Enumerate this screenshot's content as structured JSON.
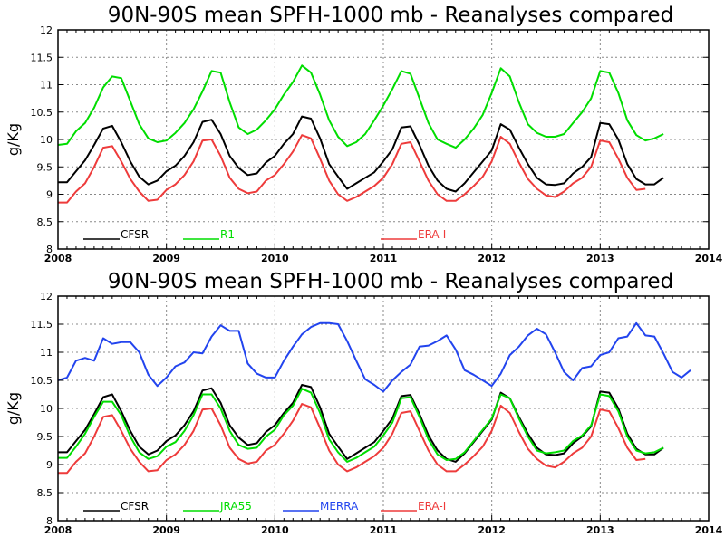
{
  "chart_data": [
    {
      "type": "line",
      "title": "90N-90S mean SPFH-1000 mb - Reanalyses compared",
      "ylabel": "g/Kg",
      "xlabel": "",
      "xlim": [
        2008,
        2014
      ],
      "ylim": [
        8,
        12
      ],
      "grid": true,
      "x_tick_labels": [
        "2008",
        "2009",
        "2010",
        "2011",
        "2012",
        "2013",
        "2014"
      ],
      "y_tick_labels": [
        "8",
        "8.5",
        "9",
        "9.5",
        "10",
        "10.5",
        "11",
        "11.5",
        "12"
      ],
      "legend_position": "bottom-left",
      "series": [
        {
          "name": "CFSR",
          "color": "#000000",
          "x_start": 2008.0,
          "x_step": 0.08333,
          "values": [
            9.22,
            9.22,
            9.42,
            9.62,
            9.9,
            10.2,
            10.25,
            9.95,
            9.6,
            9.32,
            9.18,
            9.25,
            9.42,
            9.52,
            9.7,
            9.95,
            10.32,
            10.36,
            10.1,
            9.7,
            9.48,
            9.35,
            9.38,
            9.58,
            9.7,
            9.92,
            10.1,
            10.42,
            10.38,
            10.02,
            9.55,
            9.32,
            9.1,
            9.2,
            9.3,
            9.4,
            9.6,
            9.82,
            10.22,
            10.24,
            9.9,
            9.52,
            9.25,
            9.1,
            9.05,
            9.2,
            9.4,
            9.6,
            9.8,
            10.28,
            10.18,
            9.85,
            9.55,
            9.3,
            9.18,
            9.17,
            9.2,
            9.38,
            9.5,
            9.68,
            10.3,
            10.28,
            10.0,
            9.55,
            9.28,
            9.18,
            9.18,
            9.3
          ]
        },
        {
          "name": "R1",
          "color": "#00dd00",
          "x_start": 2008.0,
          "x_step": 0.08333,
          "values": [
            9.9,
            9.92,
            10.15,
            10.3,
            10.58,
            10.95,
            11.15,
            11.12,
            10.7,
            10.28,
            10.02,
            9.95,
            9.98,
            10.12,
            10.3,
            10.55,
            10.88,
            11.25,
            11.22,
            10.68,
            10.22,
            10.1,
            10.18,
            10.35,
            10.55,
            10.82,
            11.05,
            11.35,
            11.22,
            10.82,
            10.35,
            10.05,
            9.88,
            9.95,
            10.1,
            10.35,
            10.62,
            10.92,
            11.25,
            11.2,
            10.75,
            10.3,
            10.0,
            9.92,
            9.85,
            10.0,
            10.2,
            10.45,
            10.85,
            11.3,
            11.15,
            10.68,
            10.28,
            10.12,
            10.05,
            10.05,
            10.1,
            10.3,
            10.5,
            10.75,
            11.25,
            11.22,
            10.85,
            10.35,
            10.08,
            9.98,
            10.02,
            10.1
          ]
        },
        {
          "name": "ERA-I",
          "color": "#ee3b3b",
          "x_start": 2008.0,
          "x_step": 0.08333,
          "values": [
            8.85,
            8.85,
            9.05,
            9.2,
            9.5,
            9.85,
            9.88,
            9.6,
            9.28,
            9.05,
            8.88,
            8.9,
            9.08,
            9.18,
            9.35,
            9.6,
            9.98,
            10.0,
            9.7,
            9.3,
            9.1,
            9.02,
            9.05,
            9.25,
            9.35,
            9.55,
            9.78,
            10.08,
            10.02,
            9.65,
            9.25,
            9.0,
            8.88,
            8.95,
            9.05,
            9.15,
            9.3,
            9.55,
            9.92,
            9.95,
            9.6,
            9.25,
            9.0,
            8.88,
            8.88,
            9.0,
            9.15,
            9.32,
            9.6,
            10.05,
            9.92,
            9.58,
            9.28,
            9.1,
            8.98,
            8.95,
            9.05,
            9.2,
            9.3,
            9.5,
            9.98,
            9.95,
            9.65,
            9.3,
            9.08,
            9.1
          ]
        }
      ]
    },
    {
      "type": "line",
      "title": "90N-90S mean SPFH-1000 mb - Reanalyses compared",
      "ylabel": "g/Kg",
      "xlabel": "",
      "xlim": [
        2008,
        2014
      ],
      "ylim": [
        8,
        12
      ],
      "grid": true,
      "x_tick_labels": [
        "2008",
        "2009",
        "2010",
        "2011",
        "2012",
        "2013",
        "2014"
      ],
      "y_tick_labels": [
        "8",
        "8.5",
        "9",
        "9.5",
        "10",
        "10.5",
        "11",
        "11.5",
        "12"
      ],
      "legend_position": "bottom-left",
      "series": [
        {
          "name": "CFSR",
          "color": "#000000",
          "x_start": 2008.0,
          "x_step": 0.08333,
          "values": [
            9.22,
            9.22,
            9.42,
            9.62,
            9.9,
            10.2,
            10.25,
            9.95,
            9.6,
            9.32,
            9.18,
            9.25,
            9.42,
            9.52,
            9.7,
            9.95,
            10.32,
            10.36,
            10.1,
            9.7,
            9.48,
            9.35,
            9.38,
            9.58,
            9.7,
            9.92,
            10.1,
            10.42,
            10.38,
            10.02,
            9.55,
            9.32,
            9.1,
            9.2,
            9.3,
            9.4,
            9.6,
            9.82,
            10.22,
            10.24,
            9.9,
            9.52,
            9.25,
            9.1,
            9.05,
            9.2,
            9.4,
            9.6,
            9.8,
            10.28,
            10.18,
            9.85,
            9.55,
            9.3,
            9.18,
            9.17,
            9.2,
            9.38,
            9.5,
            9.68,
            10.3,
            10.28,
            10.0,
            9.55,
            9.28,
            9.18,
            9.18,
            9.3
          ]
        },
        {
          "name": "JRA55",
          "color": "#00dd00",
          "x_start": 2008.0,
          "x_step": 0.08333,
          "values": [
            9.12,
            9.12,
            9.32,
            9.55,
            9.85,
            10.12,
            10.12,
            9.88,
            9.5,
            9.22,
            9.1,
            9.15,
            9.32,
            9.4,
            9.6,
            9.88,
            10.25,
            10.25,
            10.0,
            9.6,
            9.35,
            9.28,
            9.3,
            9.5,
            9.62,
            9.88,
            10.05,
            10.35,
            10.28,
            9.92,
            9.45,
            9.22,
            9.05,
            9.12,
            9.22,
            9.32,
            9.52,
            9.75,
            10.18,
            10.2,
            9.85,
            9.45,
            9.18,
            9.08,
            9.1,
            9.22,
            9.42,
            9.62,
            9.82,
            10.25,
            10.18,
            9.82,
            9.5,
            9.25,
            9.2,
            9.22,
            9.25,
            9.42,
            9.52,
            9.7,
            10.25,
            10.22,
            9.95,
            9.5,
            9.25,
            9.2,
            9.22,
            9.3
          ]
        },
        {
          "name": "MERRA",
          "color": "#2244ee",
          "x_start": 2008.0,
          "x_step": 0.08333,
          "values": [
            10.5,
            10.55,
            10.85,
            10.9,
            10.85,
            11.25,
            11.15,
            11.18,
            11.18,
            11.0,
            10.6,
            10.4,
            10.55,
            10.75,
            10.82,
            11.0,
            10.98,
            11.28,
            11.48,
            11.38,
            11.38,
            10.8,
            10.62,
            10.55,
            10.55,
            10.85,
            11.1,
            11.32,
            11.45,
            11.52,
            11.52,
            11.5,
            11.2,
            10.85,
            10.52,
            10.42,
            10.3,
            10.5,
            10.65,
            10.78,
            11.1,
            11.12,
            11.2,
            11.3,
            11.05,
            10.68,
            10.6,
            10.5,
            10.4,
            10.62,
            10.95,
            11.1,
            11.3,
            11.42,
            11.32,
            11.0,
            10.65,
            10.5,
            10.72,
            10.75,
            10.95,
            11.0,
            11.25,
            11.28,
            11.52,
            11.3,
            11.28,
            10.98,
            10.65,
            10.55,
            10.68
          ]
        },
        {
          "name": "ERA-I",
          "color": "#ee3b3b",
          "x_start": 2008.0,
          "x_step": 0.08333,
          "values": [
            8.85,
            8.85,
            9.05,
            9.2,
            9.5,
            9.85,
            9.88,
            9.6,
            9.28,
            9.05,
            8.88,
            8.9,
            9.08,
            9.18,
            9.35,
            9.6,
            9.98,
            10.0,
            9.7,
            9.3,
            9.1,
            9.02,
            9.05,
            9.25,
            9.35,
            9.55,
            9.78,
            10.08,
            10.02,
            9.65,
            9.25,
            9.0,
            8.88,
            8.95,
            9.05,
            9.15,
            9.3,
            9.55,
            9.92,
            9.95,
            9.6,
            9.25,
            9.0,
            8.88,
            8.88,
            9.0,
            9.15,
            9.32,
            9.6,
            10.05,
            9.92,
            9.58,
            9.28,
            9.1,
            8.98,
            8.95,
            9.05,
            9.2,
            9.3,
            9.5,
            9.98,
            9.95,
            9.65,
            9.3,
            9.08,
            9.1
          ]
        }
      ]
    }
  ]
}
